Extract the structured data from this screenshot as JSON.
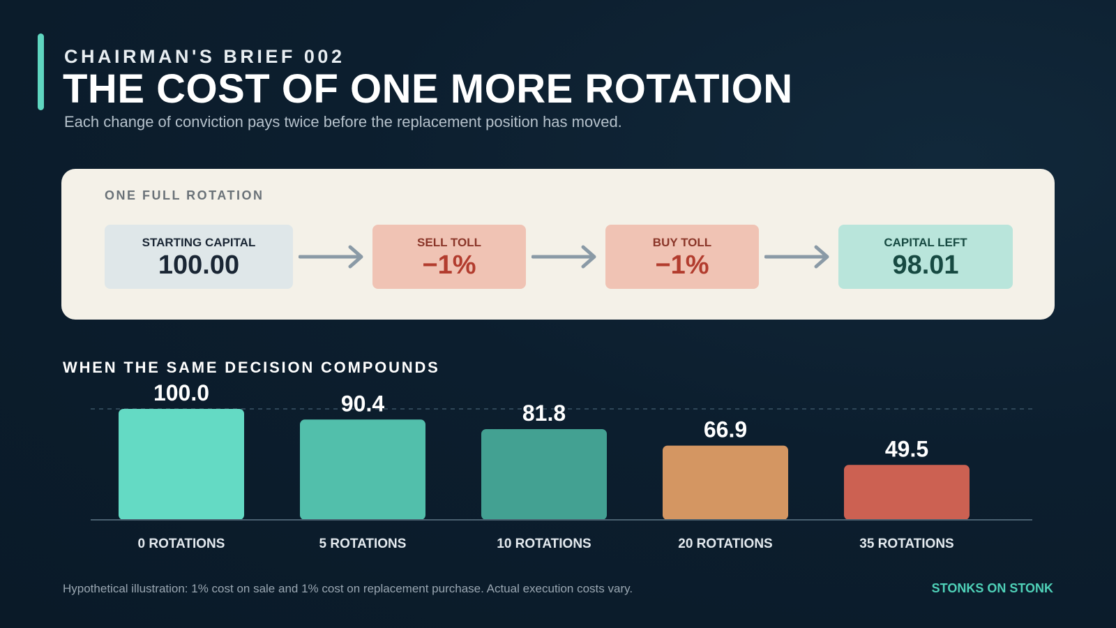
{
  "header": {
    "kicker": "CHAIRMAN'S BRIEF 002",
    "title": "THE COST OF ONE MORE ROTATION",
    "subtitle": "Each change of conviction pays twice before the replacement position has moved."
  },
  "rotation_panel": {
    "label": "ONE FULL ROTATION",
    "steps": [
      {
        "label": "STARTING CAPITAL",
        "value": "100.00"
      },
      {
        "label": "SELL TOLL",
        "value": "−1%"
      },
      {
        "label": "BUY TOLL",
        "value": "−1%"
      },
      {
        "label": "CAPITAL LEFT",
        "value": "98.01"
      }
    ]
  },
  "section": {
    "title": "WHEN THE SAME DECISION COMPOUNDS"
  },
  "chart_data": {
    "type": "bar",
    "categories": [
      "0 ROTATIONS",
      "5 ROTATIONS",
      "10 ROTATIONS",
      "20 ROTATIONS",
      "35 ROTATIONS"
    ],
    "values": [
      100.0,
      90.4,
      81.8,
      66.9,
      49.5
    ],
    "value_labels": [
      "100.0",
      "90.4",
      "81.8",
      "66.9",
      "49.5"
    ],
    "bar_colors": [
      "#64dac4",
      "#52bfab",
      "#43a192",
      "#d49662",
      "#cc6152"
    ],
    "reference_line": 100,
    "ylim": [
      0,
      100
    ],
    "grid": false,
    "title": "",
    "xlabel": "",
    "ylabel": ""
  },
  "footer": {
    "footnote": "Hypothetical illustration: 1% cost on sale and 1% cost on replacement purchase. Actual execution costs vary.",
    "brand": "STONKS ON STONK"
  },
  "colors": {
    "accent": "#5fd6c0",
    "panel_bg": "#f4f1e8",
    "arrow": "#8a9aa6"
  }
}
